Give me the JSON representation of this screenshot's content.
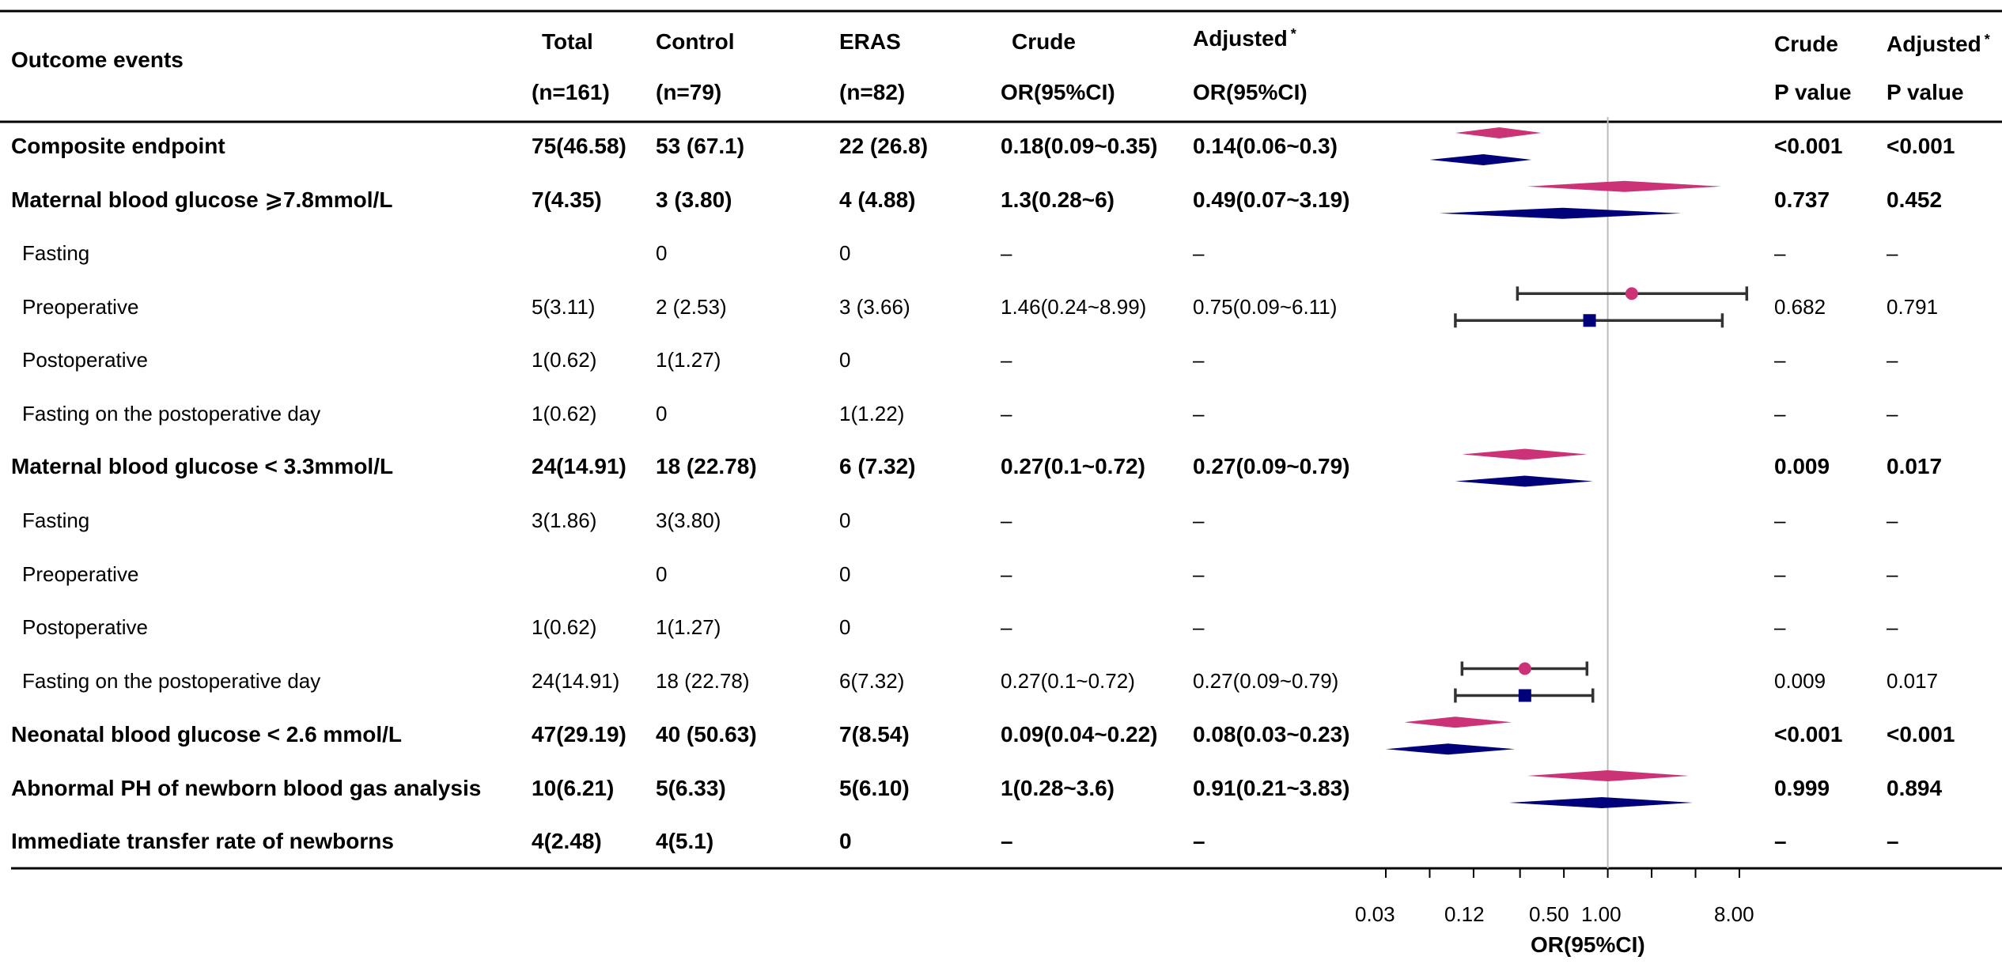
{
  "header": {
    "outcome": "Outcome events",
    "total": "Total",
    "total_n": "(n=161)",
    "control": "Control",
    "control_n": "(n=79)",
    "eras": "ERAS",
    "eras_n": "(n=82)",
    "crude": "Crude",
    "crude_or": "OR(95%CI)",
    "adjusted": "Adjusted",
    "adjusted_or": "OR(95%CI)",
    "crude_p": "Crude",
    "crude_p2": "P value",
    "adjusted_p": "Adjusted",
    "adjusted_p2": "P value",
    "star": "*"
  },
  "rows": [
    {
      "outcome": "Composite endpoint",
      "bold": true,
      "total": "75(46.58)",
      "control": "53 (67.1)",
      "eras": "22 (26.8)",
      "crude": "0.18(0.09~0.35)",
      "adjusted": "0.14(0.06~0.3)",
      "p_crude": "<0.001",
      "p_adj": "<0.001"
    },
    {
      "outcome": "Maternal blood glucose ⩾7.8mmol/L",
      "bold": true,
      "total": "7(4.35)",
      "control": "3 (3.80)",
      "eras": "4 (4.88)",
      "crude": "1.3(0.28~6)",
      "adjusted": "0.49(0.07~3.19)",
      "p_crude": "0.737",
      "p_adj": "0.452"
    },
    {
      "outcome": "Fasting",
      "bold": false,
      "total": "",
      "control": "0",
      "eras": "0",
      "crude": "–",
      "adjusted": "–",
      "p_crude": "–",
      "p_adj": "–"
    },
    {
      "outcome": "Preoperative",
      "bold": false,
      "total": "5(3.11)",
      "control": "2 (2.53)",
      "eras": "3 (3.66)",
      "crude": "1.46(0.24~8.99)",
      "adjusted": "0.75(0.09~6.11)",
      "p_crude": "0.682",
      "p_adj": "0.791"
    },
    {
      "outcome": "Postoperative",
      "bold": false,
      "total": "1(0.62)",
      "control": "1(1.27)",
      "eras": "0",
      "crude": "–",
      "adjusted": "–",
      "p_crude": "–",
      "p_adj": "–"
    },
    {
      "outcome": "Fasting on the postoperative day",
      "bold": false,
      "total": "1(0.62)",
      "control": "0",
      "eras": "1(1.22)",
      "crude": "–",
      "adjusted": "–",
      "p_crude": "–",
      "p_adj": "–"
    },
    {
      "outcome": "Maternal blood glucose < 3.3mmol/L",
      "bold": true,
      "total": "24(14.91)",
      "control": "18 (22.78)",
      "eras": "6 (7.32)",
      "crude": "0.27(0.1~0.72)",
      "adjusted": "0.27(0.09~0.79)",
      "p_crude": "0.009",
      "p_adj": "0.017"
    },
    {
      "outcome": "Fasting",
      "bold": false,
      "total": "3(1.86)",
      "control": "3(3.80)",
      "eras": "0",
      "crude": "–",
      "adjusted": "–",
      "p_crude": "–",
      "p_adj": "–"
    },
    {
      "outcome": "Preoperative",
      "bold": false,
      "total": "",
      "control": "0",
      "eras": "0",
      "crude": "–",
      "adjusted": "–",
      "p_crude": "–",
      "p_adj": "–"
    },
    {
      "outcome": "Postoperative",
      "bold": false,
      "total": "1(0.62)",
      "control": "1(1.27)",
      "eras": "0",
      "crude": "–",
      "adjusted": "–",
      "p_crude": "–",
      "p_adj": "–"
    },
    {
      "outcome": "Fasting on the postoperative day",
      "bold": false,
      "total": "24(14.91)",
      "control": "18 (22.78)",
      "eras": "6(7.32)",
      "crude": "0.27(0.1~0.72)",
      "adjusted": "0.27(0.09~0.79)",
      "p_crude": "0.009",
      "p_adj": "0.017"
    },
    {
      "outcome": "Neonatal blood glucose < 2.6 mmol/L",
      "bold": true,
      "total": "47(29.19)",
      "control": "40 (50.63)",
      "eras": "7(8.54)",
      "crude": "0.09(0.04~0.22)",
      "adjusted": "0.08(0.03~0.23)",
      "p_crude": "<0.001",
      "p_adj": "<0.001"
    },
    {
      "outcome": "Abnormal PH of newborn blood gas analysis",
      "bold": true,
      "total": "10(6.21)",
      "control": "5(6.33)",
      "eras": "5(6.10)",
      "crude": "1(0.28~3.6)",
      "adjusted": "0.91(0.21~3.83)",
      "p_crude": "0.999",
      "p_adj": "0.894"
    },
    {
      "outcome": "Immediate transfer rate of newborns",
      "bold": true,
      "total": "4(2.48)",
      "control": "4(5.1)",
      "eras": "0",
      "crude": "–",
      "adjusted": "–",
      "p_crude": "–",
      "p_adj": "–"
    }
  ],
  "chart_data": {
    "type": "forest",
    "xlabel": "OR(95%CI)",
    "x_scale": "log2",
    "xlim": [
      0.03,
      8
    ],
    "reference_line": 1.0,
    "ticks": [
      0.03,
      0.06,
      0.12,
      0.25,
      0.5,
      1,
      2,
      4,
      8
    ],
    "tick_labels": [
      {
        "value": 0.03,
        "label": "0.03"
      },
      {
        "value": 0.12,
        "label": "0.12"
      },
      {
        "value": 0.5,
        "label": "0.50"
      },
      {
        "value": 1,
        "label": "1.00"
      },
      {
        "value": 8,
        "label": "8.00"
      }
    ],
    "colors": {
      "crude": "#cc3377",
      "adjusted": "#00007a",
      "whisker": "#333333",
      "refline": "#bbbbbb",
      "rule": "#000000"
    },
    "series": [
      {
        "name": "Crude OR",
        "marker_summary": "diamond",
        "marker_individual": "circle",
        "color": "#cc3377",
        "points": [
          {
            "row": 0,
            "est": 0.18,
            "lo": 0.09,
            "hi": 0.35
          },
          {
            "row": 1,
            "est": 1.3,
            "lo": 0.28,
            "hi": 6
          },
          {
            "row": 3,
            "est": 1.46,
            "lo": 0.24,
            "hi": 8.99
          },
          {
            "row": 6,
            "est": 0.27,
            "lo": 0.1,
            "hi": 0.72
          },
          {
            "row": 10,
            "est": 0.27,
            "lo": 0.1,
            "hi": 0.72
          },
          {
            "row": 11,
            "est": 0.09,
            "lo": 0.04,
            "hi": 0.22
          },
          {
            "row": 12,
            "est": 1,
            "lo": 0.28,
            "hi": 3.6
          }
        ]
      },
      {
        "name": "Adjusted OR",
        "marker_summary": "diamond",
        "marker_individual": "square",
        "color": "#00007a",
        "points": [
          {
            "row": 0,
            "est": 0.14,
            "lo": 0.06,
            "hi": 0.3
          },
          {
            "row": 1,
            "est": 0.49,
            "lo": 0.07,
            "hi": 3.19
          },
          {
            "row": 3,
            "est": 0.75,
            "lo": 0.09,
            "hi": 6.11
          },
          {
            "row": 6,
            "est": 0.27,
            "lo": 0.09,
            "hi": 0.79
          },
          {
            "row": 10,
            "est": 0.27,
            "lo": 0.09,
            "hi": 0.79
          },
          {
            "row": 11,
            "est": 0.08,
            "lo": 0.03,
            "hi": 0.23
          },
          {
            "row": 12,
            "est": 0.91,
            "lo": 0.21,
            "hi": 3.83
          }
        ]
      }
    ]
  }
}
